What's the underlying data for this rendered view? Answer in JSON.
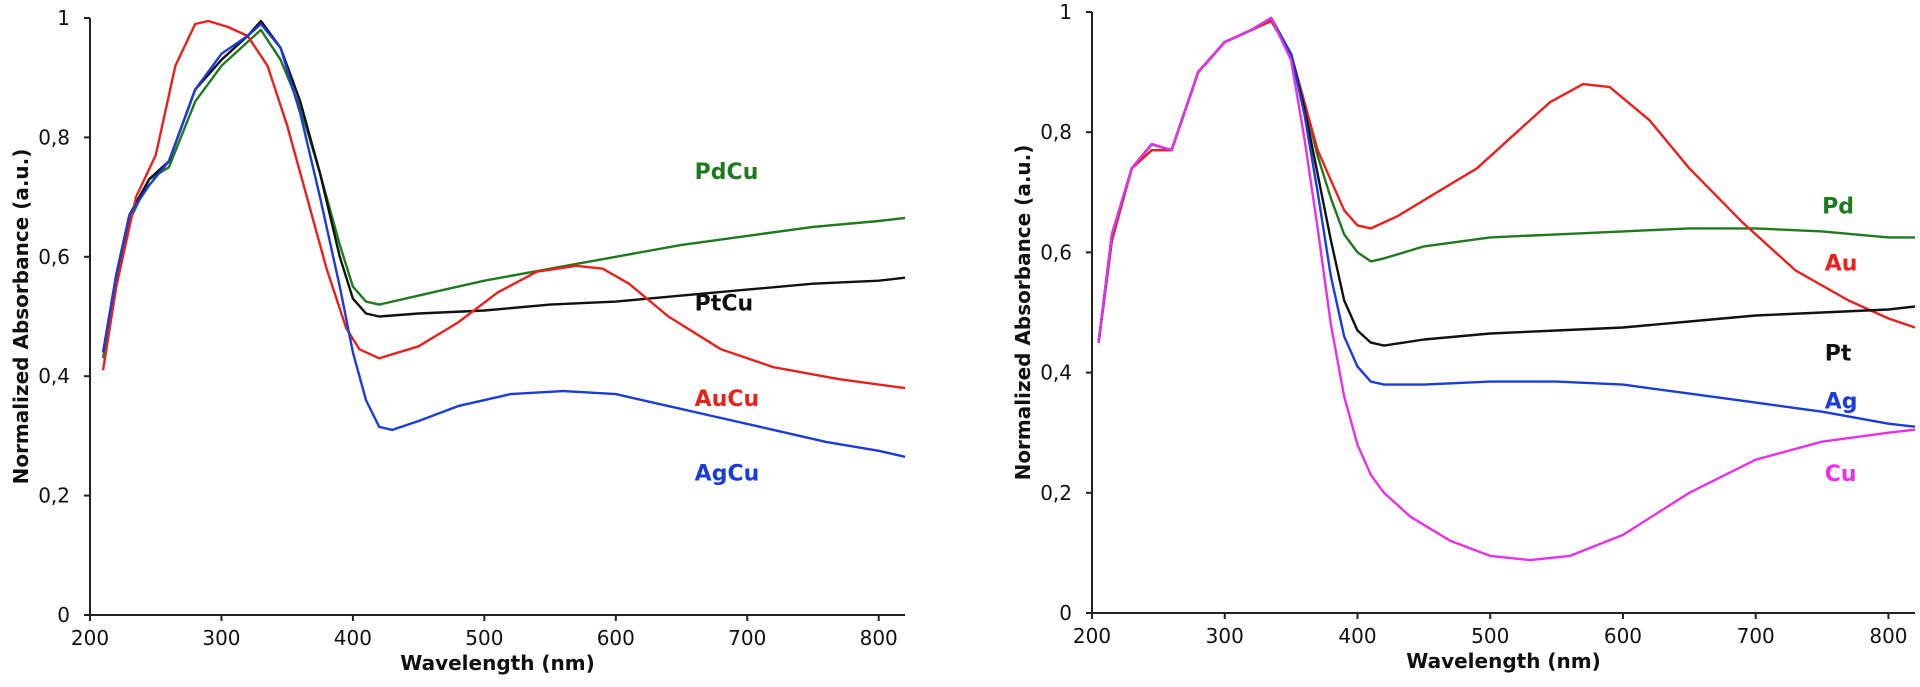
{
  "chart_data": [
    {
      "type": "line",
      "title": "",
      "xlabel": "Wavelength (nm)",
      "ylabel": "Normalized Absorbance (a.u.)",
      "xlim": [
        200,
        820
      ],
      "ylim": [
        0,
        1
      ],
      "xticks": [
        "200",
        "300",
        "400",
        "500",
        "600",
        "700",
        "800"
      ],
      "yticks": [
        "0",
        "0,2",
        "0,4",
        "0,6",
        "0,8",
        "1"
      ],
      "series": [
        {
          "name": "PdCu",
          "color": "#1f7a1f",
          "label_at": [
            660,
            0.73
          ],
          "x": [
            210,
            220,
            230,
            245,
            260,
            280,
            300,
            320,
            330,
            345,
            360,
            375,
            390,
            400,
            410,
            420,
            440,
            470,
            500,
            550,
            600,
            650,
            700,
            750,
            800,
            820
          ],
          "y": [
            0.43,
            0.56,
            0.66,
            0.73,
            0.75,
            0.86,
            0.92,
            0.96,
            0.98,
            0.93,
            0.85,
            0.74,
            0.62,
            0.55,
            0.525,
            0.52,
            0.53,
            0.545,
            0.56,
            0.58,
            0.6,
            0.62,
            0.635,
            0.65,
            0.66,
            0.665
          ]
        },
        {
          "name": "PtCu",
          "color": "#111111",
          "label_at": [
            660,
            0.51
          ],
          "x": [
            210,
            220,
            230,
            245,
            260,
            280,
            300,
            320,
            330,
            345,
            360,
            375,
            390,
            400,
            410,
            420,
            450,
            500,
            550,
            600,
            650,
            700,
            750,
            800,
            820
          ],
          "y": [
            0.44,
            0.57,
            0.67,
            0.73,
            0.76,
            0.88,
            0.93,
            0.97,
            0.995,
            0.95,
            0.86,
            0.74,
            0.6,
            0.53,
            0.505,
            0.5,
            0.505,
            0.51,
            0.52,
            0.525,
            0.535,
            0.545,
            0.555,
            0.56,
            0.565
          ]
        },
        {
          "name": "AuCu",
          "color": "#e8211d",
          "label_at": [
            660,
            0.35
          ],
          "x": [
            210,
            220,
            235,
            250,
            265,
            280,
            290,
            305,
            320,
            335,
            350,
            365,
            380,
            395,
            405,
            420,
            450,
            480,
            510,
            540,
            570,
            590,
            610,
            640,
            680,
            720,
            770,
            820
          ],
          "y": [
            0.41,
            0.55,
            0.7,
            0.77,
            0.92,
            0.99,
            0.995,
            0.985,
            0.97,
            0.92,
            0.82,
            0.7,
            0.58,
            0.48,
            0.445,
            0.43,
            0.45,
            0.49,
            0.54,
            0.575,
            0.585,
            0.58,
            0.555,
            0.5,
            0.445,
            0.415,
            0.395,
            0.38
          ]
        },
        {
          "name": "AgCu",
          "color": "#1a3cd8",
          "label_at": [
            660,
            0.225
          ],
          "x": [
            210,
            220,
            230,
            245,
            260,
            280,
            300,
            320,
            330,
            345,
            360,
            375,
            390,
            400,
            410,
            420,
            430,
            450,
            480,
            520,
            560,
            600,
            640,
            680,
            720,
            760,
            800,
            820
          ],
          "y": [
            0.44,
            0.57,
            0.67,
            0.72,
            0.76,
            0.88,
            0.94,
            0.97,
            0.99,
            0.95,
            0.84,
            0.7,
            0.55,
            0.44,
            0.36,
            0.315,
            0.31,
            0.325,
            0.35,
            0.37,
            0.375,
            0.37,
            0.35,
            0.33,
            0.31,
            0.29,
            0.275,
            0.265
          ]
        }
      ]
    },
    {
      "type": "line",
      "title": "",
      "xlabel": "Wavelength (nm)",
      "ylabel": "Normalized Absorbance (a.u.)",
      "xlim": [
        200,
        820
      ],
      "ylim": [
        0,
        1
      ],
      "xticks": [
        "200",
        "300",
        "400",
        "500",
        "600",
        "700",
        "800"
      ],
      "yticks": [
        "0",
        "0,2",
        "0,4",
        "0,6",
        "0,8",
        "1"
      ],
      "series": [
        {
          "name": "Pd",
          "color": "#1f7a1f",
          "label_at": [
            750,
            0.665
          ],
          "x": [
            205,
            215,
            230,
            245,
            260,
            280,
            300,
            320,
            335,
            350,
            360,
            370,
            380,
            390,
            400,
            410,
            420,
            450,
            500,
            550,
            600,
            650,
            700,
            750,
            800,
            820
          ],
          "y": [
            0.45,
            0.62,
            0.74,
            0.77,
            0.77,
            0.9,
            0.95,
            0.97,
            0.985,
            0.93,
            0.85,
            0.76,
            0.69,
            0.63,
            0.6,
            0.585,
            0.59,
            0.61,
            0.625,
            0.63,
            0.635,
            0.64,
            0.64,
            0.635,
            0.625,
            0.625
          ]
        },
        {
          "name": "Au",
          "color": "#e8211d",
          "label_at": [
            752,
            0.57
          ],
          "x": [
            205,
            215,
            230,
            245,
            260,
            280,
            300,
            320,
            335,
            350,
            360,
            370,
            380,
            390,
            400,
            410,
            430,
            460,
            490,
            520,
            545,
            570,
            590,
            620,
            650,
            690,
            730,
            770,
            800,
            820
          ],
          "y": [
            0.45,
            0.62,
            0.74,
            0.77,
            0.77,
            0.9,
            0.95,
            0.97,
            0.985,
            0.93,
            0.85,
            0.77,
            0.72,
            0.67,
            0.645,
            0.64,
            0.66,
            0.7,
            0.74,
            0.8,
            0.85,
            0.88,
            0.875,
            0.82,
            0.74,
            0.65,
            0.57,
            0.52,
            0.49,
            0.475
          ]
        },
        {
          "name": "Pt",
          "color": "#111111",
          "label_at": [
            752,
            0.42
          ],
          "x": [
            205,
            215,
            230,
            245,
            260,
            280,
            300,
            320,
            335,
            350,
            360,
            370,
            380,
            390,
            400,
            410,
            420,
            450,
            500,
            550,
            600,
            650,
            700,
            750,
            800,
            820
          ],
          "y": [
            0.45,
            0.63,
            0.74,
            0.78,
            0.77,
            0.9,
            0.95,
            0.97,
            0.99,
            0.93,
            0.84,
            0.73,
            0.62,
            0.52,
            0.47,
            0.45,
            0.445,
            0.455,
            0.465,
            0.47,
            0.475,
            0.485,
            0.495,
            0.5,
            0.505,
            0.51
          ]
        },
        {
          "name": "Ag",
          "color": "#1a3cd8",
          "label_at": [
            752,
            0.34
          ],
          "x": [
            205,
            215,
            230,
            245,
            260,
            280,
            300,
            320,
            335,
            350,
            360,
            370,
            380,
            390,
            400,
            410,
            420,
            450,
            500,
            550,
            600,
            650,
            700,
            750,
            800,
            820
          ],
          "y": [
            0.45,
            0.63,
            0.74,
            0.78,
            0.77,
            0.9,
            0.95,
            0.97,
            0.99,
            0.93,
            0.83,
            0.7,
            0.56,
            0.46,
            0.41,
            0.385,
            0.38,
            0.38,
            0.385,
            0.385,
            0.38,
            0.365,
            0.35,
            0.335,
            0.315,
            0.31
          ]
        },
        {
          "name": "Cu",
          "color": "#e830e8",
          "label_at": [
            752,
            0.22
          ],
          "x": [
            205,
            215,
            230,
            245,
            260,
            280,
            300,
            320,
            335,
            350,
            360,
            370,
            380,
            390,
            400,
            410,
            420,
            440,
            470,
            500,
            530,
            560,
            600,
            650,
            700,
            750,
            800,
            820
          ],
          "y": [
            0.45,
            0.63,
            0.74,
            0.78,
            0.77,
            0.9,
            0.95,
            0.97,
            0.99,
            0.92,
            0.79,
            0.64,
            0.48,
            0.36,
            0.28,
            0.23,
            0.2,
            0.16,
            0.12,
            0.095,
            0.088,
            0.095,
            0.13,
            0.2,
            0.255,
            0.285,
            0.3,
            0.305
          ]
        }
      ]
    }
  ]
}
